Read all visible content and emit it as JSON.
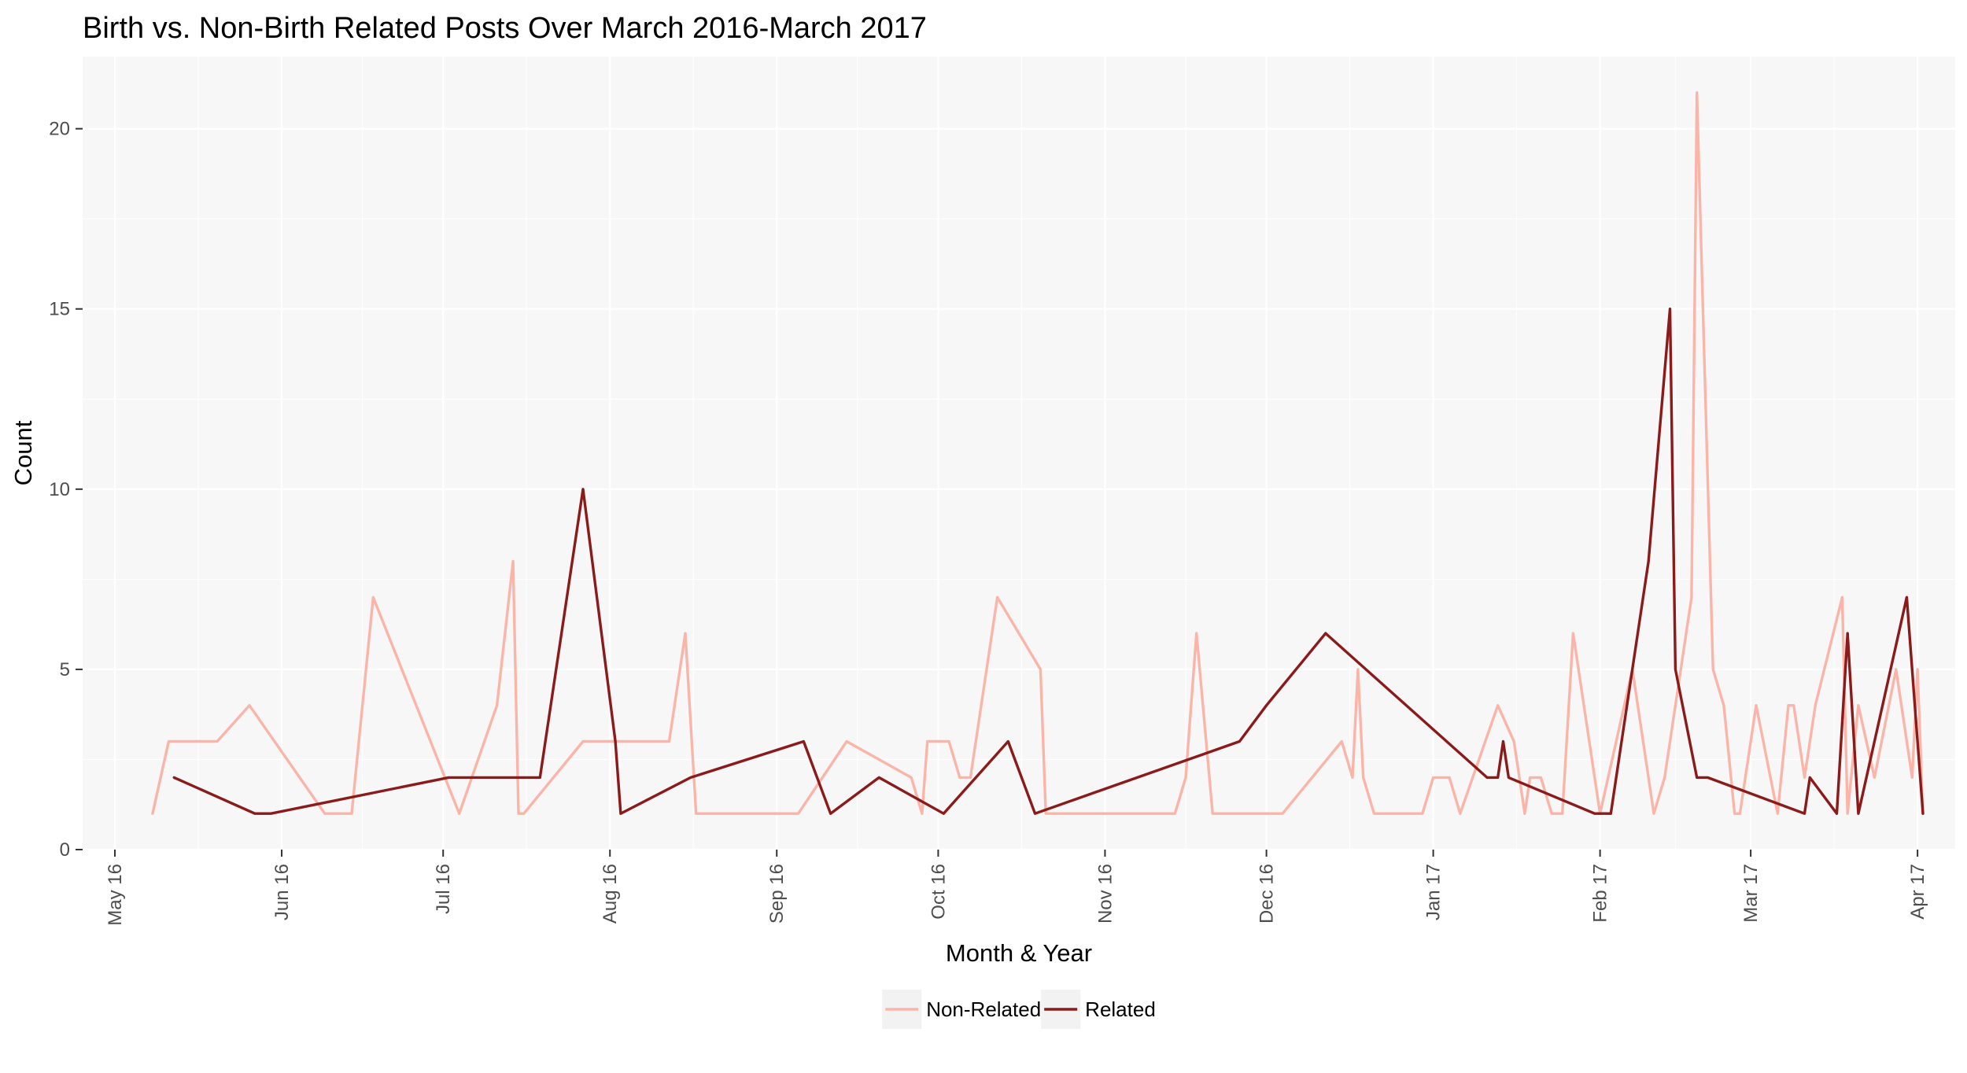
{
  "chart_data": {
    "type": "line",
    "title": "Birth vs. Non-Birth Related Posts Over March 2016-March 2017",
    "xlabel": "Month & Year",
    "ylabel": "Count",
    "ylim": [
      0,
      22
    ],
    "xlim": [
      "2016-04-25",
      "2017-04-08"
    ],
    "y_ticks": [
      0,
      5,
      10,
      15,
      20
    ],
    "x_ticks": [
      {
        "date": "2016-05-01",
        "label": "May 16"
      },
      {
        "date": "2016-06-01",
        "label": "Jun 16"
      },
      {
        "date": "2016-07-01",
        "label": "Jul 16"
      },
      {
        "date": "2016-08-01",
        "label": "Aug 16"
      },
      {
        "date": "2016-09-01",
        "label": "Sep 16"
      },
      {
        "date": "2016-10-01",
        "label": "Oct 16"
      },
      {
        "date": "2016-11-01",
        "label": "Nov 16"
      },
      {
        "date": "2016-12-01",
        "label": "Dec 16"
      },
      {
        "date": "2017-01-01",
        "label": "Jan 17"
      },
      {
        "date": "2017-02-01",
        "label": "Feb 17"
      },
      {
        "date": "2017-03-01",
        "label": "Mar 17"
      },
      {
        "date": "2017-04-01",
        "label": "Apr 17"
      }
    ],
    "grid": true,
    "legend_position": "bottom",
    "series": [
      {
        "name": "Non-Related",
        "color": "#fbb4a8",
        "points": [
          [
            "2016-05-08",
            1
          ],
          [
            "2016-05-11",
            3
          ],
          [
            "2016-05-20",
            3
          ],
          [
            "2016-05-26",
            4
          ],
          [
            "2016-06-09",
            1
          ],
          [
            "2016-06-14",
            1
          ],
          [
            "2016-06-18",
            7
          ],
          [
            "2016-07-04",
            1
          ],
          [
            "2016-07-11",
            4
          ],
          [
            "2016-07-14",
            8
          ],
          [
            "2016-07-15",
            1
          ],
          [
            "2016-07-16",
            1
          ],
          [
            "2016-07-27",
            3
          ],
          [
            "2016-08-01",
            3
          ],
          [
            "2016-08-12",
            3
          ],
          [
            "2016-08-15",
            6
          ],
          [
            "2016-08-17",
            1
          ],
          [
            "2016-09-05",
            1
          ],
          [
            "2016-09-14",
            3
          ],
          [
            "2016-09-26",
            2
          ],
          [
            "2016-09-28",
            1
          ],
          [
            "2016-09-29",
            3
          ],
          [
            "2016-10-03",
            3
          ],
          [
            "2016-10-05",
            2
          ],
          [
            "2016-10-07",
            2
          ],
          [
            "2016-10-12",
            7
          ],
          [
            "2016-10-20",
            5
          ],
          [
            "2016-10-21",
            1
          ],
          [
            "2016-11-14",
            1
          ],
          [
            "2016-11-16",
            2
          ],
          [
            "2016-11-18",
            6
          ],
          [
            "2016-11-21",
            1
          ],
          [
            "2016-12-04",
            1
          ],
          [
            "2016-12-15",
            3
          ],
          [
            "2016-12-17",
            2
          ],
          [
            "2016-12-18",
            5
          ],
          [
            "2016-12-19",
            2
          ],
          [
            "2016-12-21",
            1
          ],
          [
            "2016-12-30",
            1
          ],
          [
            "2017-01-01",
            2
          ],
          [
            "2017-01-04",
            2
          ],
          [
            "2017-01-06",
            1
          ],
          [
            "2017-01-13",
            4
          ],
          [
            "2017-01-16",
            3
          ],
          [
            "2017-01-18",
            1
          ],
          [
            "2017-01-19",
            2
          ],
          [
            "2017-01-21",
            2
          ],
          [
            "2017-01-23",
            1
          ],
          [
            "2017-01-25",
            1
          ],
          [
            "2017-01-27",
            6
          ],
          [
            "2017-02-01",
            1
          ],
          [
            "2017-02-07",
            5
          ],
          [
            "2017-02-11",
            1
          ],
          [
            "2017-02-13",
            2
          ],
          [
            "2017-02-18",
            7
          ],
          [
            "2017-02-19",
            21
          ],
          [
            "2017-02-22",
            5
          ],
          [
            "2017-02-24",
            4
          ],
          [
            "2017-02-26",
            1
          ],
          [
            "2017-02-27",
            1
          ],
          [
            "2017-03-02",
            4
          ],
          [
            "2017-03-06",
            1
          ],
          [
            "2017-03-08",
            4
          ],
          [
            "2017-03-09",
            4
          ],
          [
            "2017-03-11",
            2
          ],
          [
            "2017-03-13",
            4
          ],
          [
            "2017-03-18",
            7
          ],
          [
            "2017-03-19",
            1
          ],
          [
            "2017-03-21",
            4
          ],
          [
            "2017-03-24",
            2
          ],
          [
            "2017-03-28",
            5
          ],
          [
            "2017-03-31",
            2
          ],
          [
            "2017-04-01",
            5
          ],
          [
            "2017-04-02",
            1
          ]
        ]
      },
      {
        "name": "Related",
        "color": "#8b1a1a",
        "points": [
          [
            "2016-05-12",
            2
          ],
          [
            "2016-05-27",
            1
          ],
          [
            "2016-05-30",
            1
          ],
          [
            "2016-07-02",
            2
          ],
          [
            "2016-07-19",
            2
          ],
          [
            "2016-07-27",
            10
          ],
          [
            "2016-08-02",
            3
          ],
          [
            "2016-08-03",
            1
          ],
          [
            "2016-08-16",
            2
          ],
          [
            "2016-09-06",
            3
          ],
          [
            "2016-09-11",
            1
          ],
          [
            "2016-09-20",
            2
          ],
          [
            "2016-10-02",
            1
          ],
          [
            "2016-10-14",
            3
          ],
          [
            "2016-10-19",
            1
          ],
          [
            "2016-11-26",
            3
          ],
          [
            "2016-12-01",
            4
          ],
          [
            "2016-12-12",
            6
          ],
          [
            "2017-01-11",
            2
          ],
          [
            "2017-01-13",
            2
          ],
          [
            "2017-01-14",
            3
          ],
          [
            "2017-01-15",
            2
          ],
          [
            "2017-01-31",
            1
          ],
          [
            "2017-02-03",
            1
          ],
          [
            "2017-02-10",
            8
          ],
          [
            "2017-02-14",
            15
          ],
          [
            "2017-02-15",
            5
          ],
          [
            "2017-02-19",
            2
          ],
          [
            "2017-02-21",
            2
          ],
          [
            "2017-03-11",
            1
          ],
          [
            "2017-03-12",
            2
          ],
          [
            "2017-03-17",
            1
          ],
          [
            "2017-03-19",
            6
          ],
          [
            "2017-03-21",
            1
          ],
          [
            "2017-03-30",
            7
          ],
          [
            "2017-04-02",
            1
          ]
        ]
      }
    ]
  }
}
